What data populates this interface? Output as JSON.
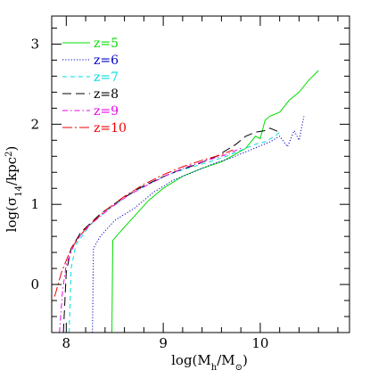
{
  "chart_data": {
    "type": "line",
    "xlabel": "log(M_h/M_⊙)",
    "ylabel": "log(σ_14/kpc²)",
    "xlim": [
      7.85,
      10.92
    ],
    "ylim": [
      -0.6,
      3.35
    ],
    "x_ticks": [
      "8",
      "9",
      "10"
    ],
    "y_ticks": [
      "0",
      "1",
      "2",
      "3"
    ],
    "legend_position": "top-left",
    "series": [
      {
        "name": "z=5",
        "color": "#00dd00",
        "dash": "solid",
        "points": [
          [
            8.47,
            -0.6
          ],
          [
            8.48,
            0.55
          ],
          [
            8.55,
            0.65
          ],
          [
            8.7,
            0.85
          ],
          [
            8.85,
            1.05
          ],
          [
            9.0,
            1.2
          ],
          [
            9.2,
            1.35
          ],
          [
            9.4,
            1.45
          ],
          [
            9.6,
            1.53
          ],
          [
            9.75,
            1.63
          ],
          [
            9.85,
            1.7
          ],
          [
            9.95,
            1.85
          ],
          [
            10.0,
            1.82
          ],
          [
            10.05,
            2.05
          ],
          [
            10.1,
            2.1
          ],
          [
            10.2,
            2.15
          ],
          [
            10.3,
            2.3
          ],
          [
            10.4,
            2.4
          ],
          [
            10.5,
            2.55
          ],
          [
            10.6,
            2.67
          ]
        ]
      },
      {
        "name": "z=6",
        "color": "#0000cc",
        "dash": "dotted",
        "points": [
          [
            8.27,
            -0.6
          ],
          [
            8.28,
            0.45
          ],
          [
            8.35,
            0.6
          ],
          [
            8.5,
            0.8
          ],
          [
            8.7,
            0.95
          ],
          [
            8.9,
            1.15
          ],
          [
            9.1,
            1.3
          ],
          [
            9.3,
            1.4
          ],
          [
            9.5,
            1.5
          ],
          [
            9.7,
            1.58
          ],
          [
            9.9,
            1.68
          ],
          [
            10.1,
            1.78
          ],
          [
            10.2,
            1.85
          ],
          [
            10.28,
            1.72
          ],
          [
            10.35,
            1.92
          ],
          [
            10.4,
            1.8
          ],
          [
            10.45,
            2.1
          ]
        ]
      },
      {
        "name": "z=7",
        "color": "#00dddd",
        "dash": "dashed",
        "points": [
          [
            8.03,
            -0.6
          ],
          [
            8.05,
            0.2
          ],
          [
            8.1,
            0.5
          ],
          [
            8.25,
            0.75
          ],
          [
            8.45,
            0.95
          ],
          [
            8.65,
            1.12
          ],
          [
            8.85,
            1.25
          ],
          [
            9.05,
            1.37
          ],
          [
            9.25,
            1.45
          ],
          [
            9.45,
            1.52
          ],
          [
            9.65,
            1.6
          ],
          [
            9.85,
            1.7
          ],
          [
            9.95,
            1.75
          ],
          [
            10.05,
            1.78
          ],
          [
            10.15,
            1.85
          ],
          [
            10.2,
            1.9
          ]
        ]
      },
      {
        "name": "z=8",
        "color": "#000000",
        "dash": "longdash",
        "points": [
          [
            7.97,
            -0.6
          ],
          [
            8.0,
            0.15
          ],
          [
            8.05,
            0.45
          ],
          [
            8.15,
            0.65
          ],
          [
            8.35,
            0.88
          ],
          [
            8.55,
            1.05
          ],
          [
            8.75,
            1.2
          ],
          [
            8.95,
            1.32
          ],
          [
            9.15,
            1.42
          ],
          [
            9.35,
            1.5
          ],
          [
            9.55,
            1.6
          ],
          [
            9.75,
            1.75
          ],
          [
            9.85,
            1.85
          ],
          [
            9.95,
            1.9
          ],
          [
            10.05,
            1.92
          ],
          [
            10.1,
            1.95
          ],
          [
            10.2,
            1.9
          ]
        ]
      },
      {
        "name": "z=9",
        "color": "#ee00ee",
        "dash": "dashdot",
        "points": [
          [
            7.93,
            -0.6
          ],
          [
            7.96,
            -0.1
          ],
          [
            8.0,
            0.25
          ],
          [
            8.1,
            0.55
          ],
          [
            8.25,
            0.75
          ],
          [
            8.45,
            0.95
          ],
          [
            8.65,
            1.12
          ],
          [
            8.85,
            1.25
          ],
          [
            9.05,
            1.37
          ],
          [
            9.25,
            1.47
          ],
          [
            9.45,
            1.55
          ],
          [
            9.65,
            1.62
          ],
          [
            9.8,
            1.7
          ]
        ]
      },
      {
        "name": "z=10",
        "color": "#ee0000",
        "dash": "longdashdot",
        "points": [
          [
            7.88,
            -0.15
          ],
          [
            7.95,
            0.15
          ],
          [
            8.05,
            0.45
          ],
          [
            8.2,
            0.7
          ],
          [
            8.4,
            0.92
          ],
          [
            8.6,
            1.1
          ],
          [
            8.8,
            1.25
          ],
          [
            9.0,
            1.37
          ],
          [
            9.2,
            1.47
          ],
          [
            9.4,
            1.55
          ],
          [
            9.6,
            1.62
          ],
          [
            9.72,
            1.68
          ]
        ]
      }
    ]
  }
}
